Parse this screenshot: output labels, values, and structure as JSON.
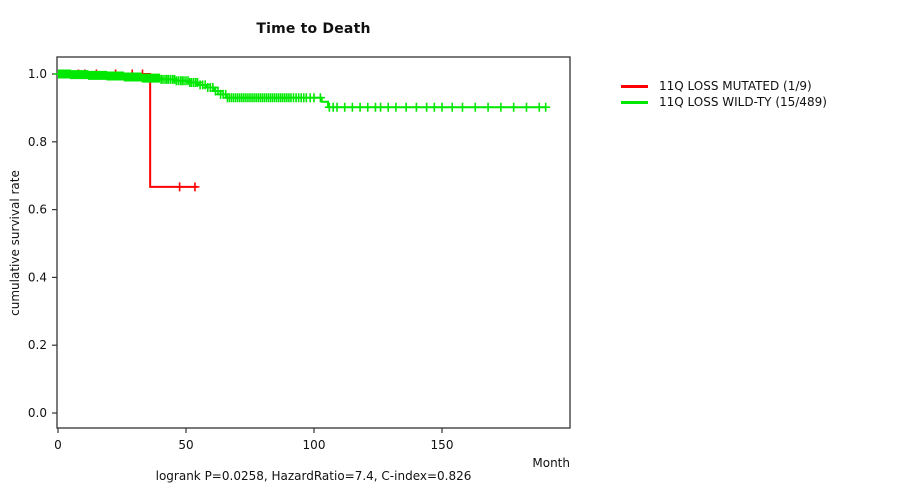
{
  "chart_data": {
    "type": "line",
    "subtype": "kaplan-meier-step",
    "title": "Time to Death",
    "xlabel": "Month",
    "ylabel": "cumulative survival rate",
    "footnote": "logrank P=0.0258, HazardRatio=7.4, C-index=0.826",
    "xlim": [
      0,
      200
    ],
    "ylim": [
      0,
      1.05
    ],
    "xticks": [
      0,
      50,
      100,
      150
    ],
    "xtick_labels": [
      "0",
      "50",
      "100",
      "150"
    ],
    "yticks": [
      0.0,
      0.2,
      0.4,
      0.6,
      0.8,
      1.0
    ],
    "ytick_labels": [
      "0.0",
      "0.2",
      "0.4",
      "0.6",
      "0.8",
      "1.0"
    ],
    "grid": false,
    "legend_position": "right-outside",
    "axis_color": "#333333",
    "series": [
      {
        "name": "11Q LOSS MUTATED (1/9)",
        "color": "#FF0000",
        "steps": [
          [
            0,
            1.0
          ],
          [
            36,
            0.667
          ]
        ],
        "end_time": 54.5,
        "censor_times": [
          8,
          10.5,
          15,
          22.5,
          29,
          33,
          47.5,
          53.5
        ]
      },
      {
        "name": "11Q LOSS WILD-TY (15/489)",
        "color": "#00E800",
        "steps": [
          [
            0,
            1.0
          ],
          [
            5,
            0.998
          ],
          [
            12,
            0.996
          ],
          [
            19,
            0.994
          ],
          [
            26,
            0.991
          ],
          [
            33,
            0.988
          ],
          [
            40,
            0.984
          ],
          [
            46,
            0.98
          ],
          [
            51,
            0.975
          ],
          [
            55,
            0.968
          ],
          [
            58,
            0.96
          ],
          [
            61,
            0.95
          ],
          [
            63.5,
            0.94
          ],
          [
            66,
            0.93
          ],
          [
            103,
            0.918
          ],
          [
            105.5,
            0.902
          ]
        ],
        "end_time": 190.5,
        "censor_times": [
          0.3,
          0.7,
          1,
          1.4,
          1.8,
          2.1,
          2.5,
          2.8,
          3.2,
          3.6,
          4,
          4.3,
          4.7,
          5,
          5.4,
          5.8,
          6.1,
          6.5,
          6.9,
          7.2,
          7.6,
          8,
          8.3,
          8.7,
          9,
          9.4,
          9.8,
          10.1,
          10.5,
          10.9,
          11.2,
          11.6,
          12,
          12.3,
          12.7,
          13,
          13.4,
          13.8,
          14.1,
          14.5,
          14.9,
          15.2,
          15.6,
          16,
          16.3,
          16.7,
          17,
          17.4,
          17.8,
          18.1,
          18.5,
          18.9,
          19.2,
          19.6,
          20,
          20.4,
          20.8,
          21.2,
          21.6,
          22,
          22.5,
          23,
          23.5,
          24,
          24.5,
          25,
          25.5,
          26,
          26.5,
          27,
          27.5,
          28,
          28.5,
          29,
          29.5,
          30,
          30.6,
          31.2,
          31.8,
          32.4,
          33,
          33.6,
          34.2,
          34.8,
          35.4,
          36,
          36.6,
          37.2,
          37.8,
          38.4,
          39,
          39.6,
          40.3,
          41,
          41.8,
          42.5,
          43.2,
          44,
          44.8,
          45.5,
          46.2,
          47,
          47.8,
          48.5,
          49.2,
          50,
          50.8,
          51.5,
          52.2,
          53,
          53.8,
          54.5,
          55.5,
          56.5,
          57.5,
          58.5,
          59.5,
          60.5,
          61.5,
          62.5,
          63.5,
          64.5,
          65.5,
          66.2,
          67,
          67.8,
          68.6,
          69.4,
          70.2,
          71,
          71.8,
          72.6,
          73.4,
          74.2,
          75,
          75.8,
          76.6,
          77.4,
          78.2,
          79,
          79.8,
          80.6,
          81.4,
          82.2,
          83,
          83.8,
          84.6,
          85.4,
          86.2,
          87,
          87.8,
          88.6,
          89.4,
          90.2,
          91,
          92,
          93,
          94,
          95,
          96,
          97,
          98.5,
          100,
          102.5,
          106,
          107.5,
          109,
          112,
          115,
          118,
          121,
          124,
          126,
          129,
          132,
          136,
          140,
          144,
          147,
          150,
          154,
          158,
          163,
          168,
          173,
          178,
          183,
          188,
          190.5
        ]
      }
    ]
  }
}
